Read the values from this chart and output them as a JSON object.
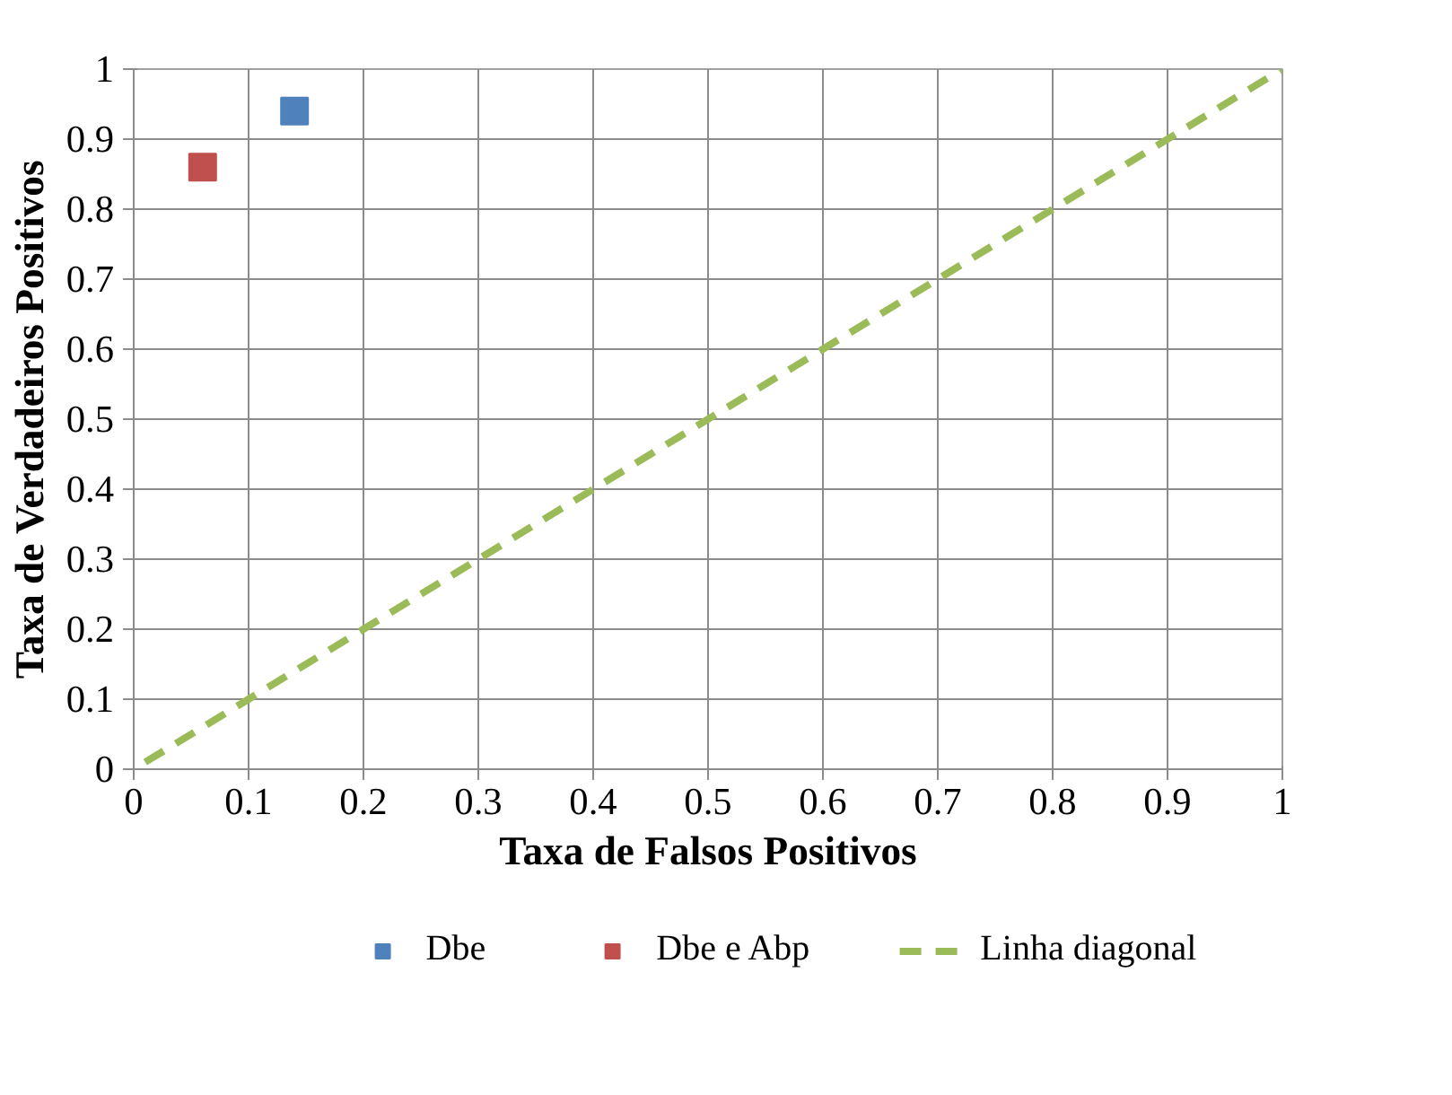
{
  "chart_data": {
    "type": "scatter",
    "xlabel": "Taxa de Falsos Positivos",
    "ylabel": "Taxa de Verdadeiros Positivos",
    "xlim": [
      0,
      1
    ],
    "ylim": [
      0,
      1
    ],
    "xticks": [
      0,
      0.1,
      0.2,
      0.3,
      0.4,
      0.5,
      0.6,
      0.7,
      0.8,
      0.9,
      1
    ],
    "yticks": [
      0,
      0.1,
      0.2,
      0.3,
      0.4,
      0.5,
      0.6,
      0.7,
      0.8,
      0.9,
      1
    ],
    "grid": true,
    "legend": "bottom",
    "series": [
      {
        "name": "Dbe",
        "type": "scatter",
        "marker": "square",
        "color": "#4f81bd",
        "x": [
          0.14
        ],
        "values": [
          0.94
        ]
      },
      {
        "name": "Dbe e Abp",
        "type": "scatter",
        "marker": "square",
        "color": "#c0504d",
        "x": [
          0.06
        ],
        "values": [
          0.86
        ]
      },
      {
        "name": "Linha diagonal",
        "type": "line",
        "line_style": "dashed",
        "marker": "none",
        "color": "#9bbb59",
        "x": [
          0.01,
          1
        ],
        "values": [
          0.01,
          1
        ]
      }
    ]
  }
}
